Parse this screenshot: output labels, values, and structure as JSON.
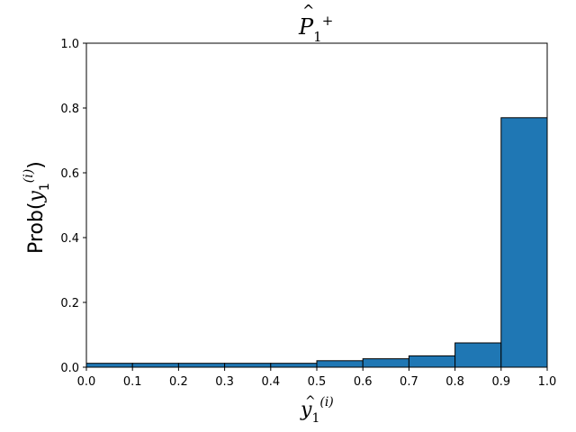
{
  "chart_data": {
    "type": "bar",
    "title": "P̂₁⁺",
    "xlabel": "ŷ₁⁽ⁱ⁾",
    "ylabel": "Prob(ŷ₁⁽ⁱ⁾)",
    "xlim": [
      0.0,
      1.0
    ],
    "ylim": [
      0.0,
      1.0
    ],
    "bin_edges": [
      0.0,
      0.1,
      0.2,
      0.3,
      0.4,
      0.5,
      0.6,
      0.7,
      0.8,
      0.9,
      1.0
    ],
    "values": [
      0.012,
      0.012,
      0.012,
      0.012,
      0.012,
      0.02,
      0.026,
      0.035,
      0.075,
      0.77
    ],
    "x_ticks": [
      "0.0",
      "0.1",
      "0.2",
      "0.3",
      "0.4",
      "0.5",
      "0.6",
      "0.7",
      "0.8",
      "0.9",
      "1.0"
    ],
    "y_ticks": [
      "0.0",
      "0.2",
      "0.4",
      "0.6",
      "0.8",
      "1.0"
    ],
    "bar_color": "#1f77b4",
    "edge_color": "#000000",
    "grid": false,
    "legend": false
  }
}
